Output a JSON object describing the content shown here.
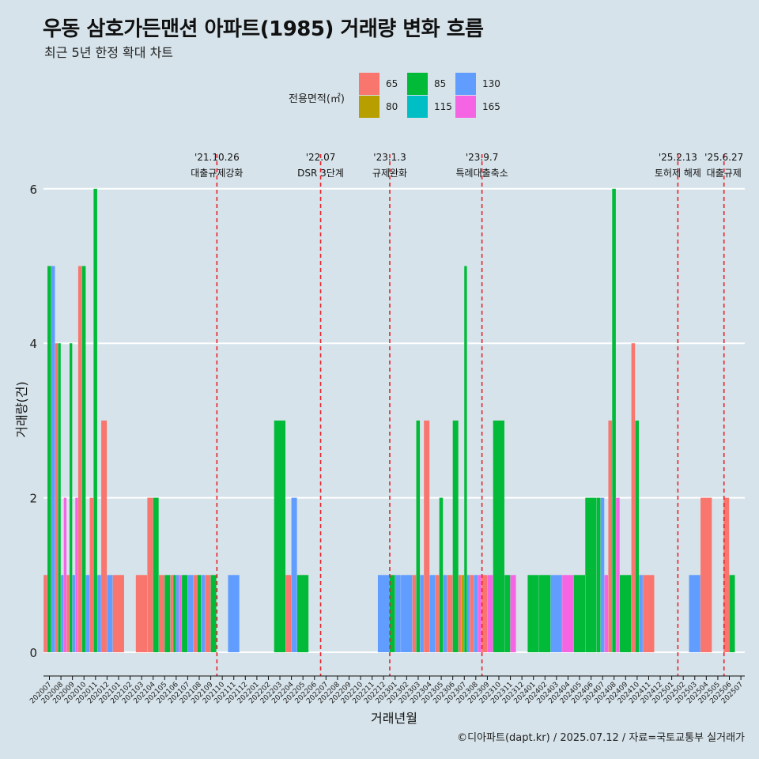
{
  "title": "우동 삼호가든맨션 아파트(1985) 거래량 변화 흐름",
  "subtitle": "최근 5년 한정 확대 차트",
  "footer": "©디아파트(dapt.kr) / 2025.07.12 / 자료=국토교통부 실거래가",
  "colors": {
    "background": "#d6e3ea",
    "grid": "#ffffff",
    "event_line": "#e8222a"
  },
  "chart_data": {
    "type": "bar",
    "xlabel": "거래년월",
    "ylabel": "거래량(건)",
    "ylim": [
      -0.3,
      6.4
    ],
    "yticks": [
      0,
      2,
      4,
      6
    ],
    "legend": {
      "title": "전용면적(㎡)",
      "placement": "top-center",
      "entries": [
        {
          "name": "65",
          "color": "#f8766d"
        },
        {
          "name": "80",
          "color": "#b79f00"
        },
        {
          "name": "85",
          "color": "#00ba38"
        },
        {
          "name": "115",
          "color": "#00bfc4"
        },
        {
          "name": "130",
          "color": "#619cff"
        },
        {
          "name": "165",
          "color": "#f564e3"
        }
      ]
    },
    "categories": [
      "202007",
      "202008",
      "202009",
      "202010",
      "202011",
      "202012",
      "202101",
      "202102",
      "202103",
      "202104",
      "202105",
      "202106",
      "202107",
      "202108",
      "202109",
      "202110",
      "202111",
      "202112",
      "202201",
      "202202",
      "202203",
      "202204",
      "202205",
      "202206",
      "202207",
      "202208",
      "202209",
      "202210",
      "202211",
      "202212",
      "202301",
      "202302",
      "202303",
      "202304",
      "202305",
      "202306",
      "202307",
      "202308",
      "202309",
      "202310",
      "202311",
      "202312",
      "202401",
      "202402",
      "202403",
      "202404",
      "202405",
      "202406",
      "202407",
      "202408",
      "202409",
      "202410",
      "202411",
      "202412",
      "202501",
      "202502",
      "202503",
      "202504",
      "202505",
      "202506",
      "202507"
    ],
    "series": [
      {
        "name": "65",
        "values": [
          1,
          4,
          1,
          5,
          2,
          3,
          1,
          0,
          1,
          2,
          1,
          1,
          0,
          1,
          1,
          0,
          0,
          0,
          0,
          0,
          0,
          1,
          0,
          0,
          0,
          0,
          0,
          0,
          0,
          0,
          0,
          0,
          1,
          3,
          1,
          1,
          1,
          1,
          1,
          0,
          0,
          0,
          0,
          0,
          0,
          0,
          0,
          0,
          0,
          3,
          0,
          4,
          1,
          0,
          0,
          0,
          0,
          2,
          0,
          2,
          0
        ]
      },
      {
        "name": "80",
        "values": [
          0,
          0,
          0,
          0,
          0,
          0,
          0,
          0,
          0,
          0,
          0,
          0,
          0,
          0,
          0,
          0,
          0,
          0,
          0,
          0,
          0,
          0,
          0,
          0,
          0,
          0,
          0,
          0,
          0,
          0,
          0,
          0,
          0,
          0,
          0,
          0,
          1,
          0,
          0,
          0,
          0,
          0,
          0,
          0,
          0,
          0,
          0,
          0,
          0,
          0,
          0,
          0,
          0,
          0,
          0,
          0,
          0,
          0,
          0,
          0,
          0
        ]
      },
      {
        "name": "85",
        "values": [
          5,
          4,
          4,
          5,
          6,
          0,
          0,
          0,
          0,
          2,
          1,
          1,
          1,
          1,
          1,
          0,
          0,
          0,
          0,
          0,
          3,
          0,
          1,
          0,
          0,
          0,
          0,
          0,
          0,
          0,
          1,
          0,
          3,
          0,
          2,
          3,
          5,
          0,
          0,
          3,
          1,
          0,
          1,
          1,
          0,
          0,
          1,
          2,
          2,
          6,
          1,
          3,
          0,
          0,
          0,
          0,
          0,
          0,
          0,
          1,
          0
        ]
      },
      {
        "name": "115",
        "values": [
          0,
          0,
          0,
          0,
          0,
          0,
          0,
          0,
          0,
          0,
          0,
          0,
          0,
          0,
          0,
          0,
          0,
          0,
          0,
          0,
          0,
          0,
          0,
          0,
          0,
          0,
          0,
          0,
          0,
          0,
          0,
          0,
          0,
          0,
          0,
          0,
          0,
          0,
          0,
          0,
          0,
          0,
          0,
          0,
          0,
          0,
          0,
          0,
          0,
          0,
          0,
          0,
          0,
          0,
          0,
          0,
          0,
          0,
          0,
          0,
          0
        ]
      },
      {
        "name": "130",
        "values": [
          5,
          1,
          1,
          1,
          1,
          1,
          0,
          0,
          0,
          0,
          0,
          1,
          1,
          1,
          0,
          0,
          1,
          0,
          0,
          0,
          0,
          2,
          0,
          0,
          0,
          0,
          0,
          0,
          0,
          1,
          1,
          1,
          1,
          1,
          1,
          0,
          1,
          1,
          0,
          0,
          0,
          0,
          0,
          0,
          1,
          0,
          0,
          0,
          2,
          0,
          0,
          1,
          0,
          0,
          0,
          0,
          1,
          0,
          0,
          0,
          0
        ]
      },
      {
        "name": "165",
        "values": [
          0,
          2,
          2,
          0,
          0,
          0,
          0,
          0,
          0,
          0,
          0,
          1,
          0,
          0,
          0,
          0,
          0,
          0,
          0,
          0,
          0,
          0,
          0,
          0,
          0,
          0,
          0,
          0,
          0,
          0,
          0,
          0,
          0,
          0,
          0,
          0,
          0,
          1,
          1,
          0,
          1,
          0,
          0,
          0,
          0,
          1,
          0,
          0,
          1,
          2,
          0,
          0,
          0,
          0,
          0,
          0,
          0,
          0,
          0,
          0,
          0
        ]
      }
    ],
    "events": [
      {
        "x": "202110",
        "date": "'21.10.26",
        "label": "대출규제강화"
      },
      {
        "x": "202207",
        "date": "'22.07",
        "label": "DSR 3단계"
      },
      {
        "x": "202301",
        "date": "'23.1.3",
        "label": "규제완화"
      },
      {
        "x": "202309",
        "date": "'23.9.7",
        "label": "특례대출축소"
      },
      {
        "x": "202502",
        "date": "'25.2.13",
        "label": "토허제 해제"
      },
      {
        "x": "202506",
        "date": "'25.6.27",
        "label": "대출규제"
      }
    ]
  }
}
